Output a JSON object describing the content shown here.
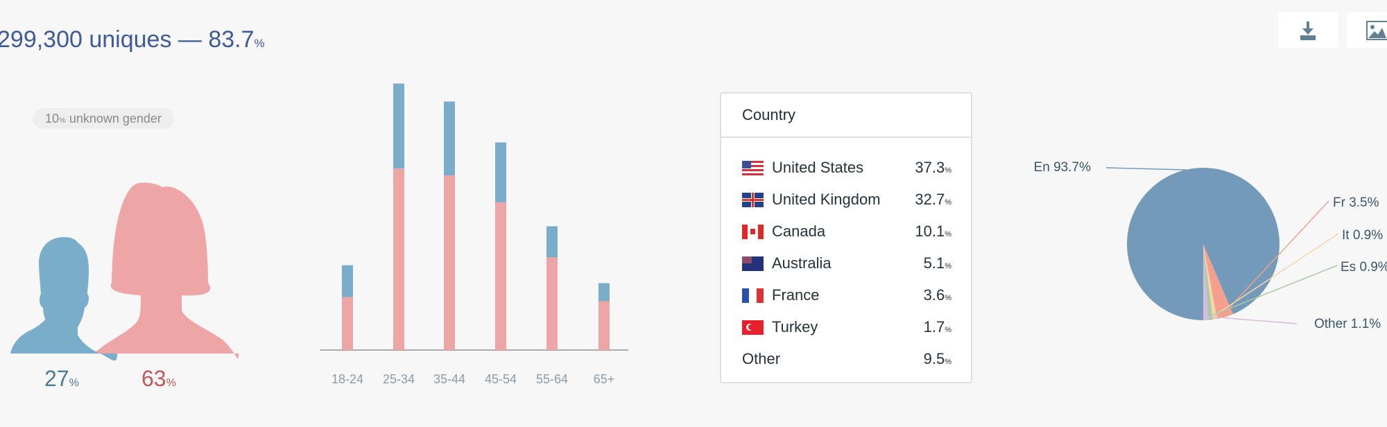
{
  "header": {
    "uniques": "299,300 uniques",
    "dash": "—",
    "share": "83.7",
    "share_unit": "%"
  },
  "toolbar": {
    "download_icon": "download-icon",
    "image_icon": "image-icon"
  },
  "gender": {
    "unknown_value": "10",
    "unknown_unit": "%",
    "unknown_label": "unknown gender",
    "male": {
      "value": "27",
      "unit": "%",
      "color": "#79adc9"
    },
    "female": {
      "value": "63",
      "unit": "%",
      "color": "#eea5a6"
    }
  },
  "chart_data": [
    {
      "type": "bar",
      "stacked": true,
      "categories": [
        "18-24",
        "25-34",
        "35-44",
        "45-54",
        "55-64",
        "65+"
      ],
      "series": [
        {
          "color": "#eea5a6",
          "values": [
            5.3,
            18.2,
            17.5,
            14.8,
            9.3,
            4.9
          ]
        },
        {
          "color": "#79adc9",
          "values": [
            3.2,
            8.5,
            7.4,
            6.0,
            3.1,
            1.8
          ]
        }
      ],
      "grid": false
    },
    {
      "type": "pie",
      "slices": [
        {
          "label": "En 93.7%",
          "value": 93.7,
          "color": "#739bb9"
        },
        {
          "label": "Fr 3.5%",
          "value": 3.5,
          "color": "#f4a08f"
        },
        {
          "label": "It 0.9%",
          "value": 0.9,
          "color": "#f6d6a6"
        },
        {
          "label": "Es 0.9%",
          "value": 0.9,
          "color": "#a9c8a6"
        },
        {
          "label": "Other 1.1%",
          "value": 1.1,
          "color": "#d3bcdc"
        }
      ]
    }
  ],
  "country": {
    "title": "Country",
    "rows": [
      {
        "name": "United States",
        "value": "37.3",
        "unit": "%",
        "flag": "us"
      },
      {
        "name": "United Kingdom",
        "value": "32.7",
        "unit": "%",
        "flag": "gb"
      },
      {
        "name": "Canada",
        "value": "10.1",
        "unit": "%",
        "flag": "ca"
      },
      {
        "name": "Australia",
        "value": "5.1",
        "unit": "%",
        "flag": "au"
      },
      {
        "name": "France",
        "value": "3.6",
        "unit": "%",
        "flag": "fr"
      },
      {
        "name": "Turkey",
        "value": "1.7",
        "unit": "%",
        "flag": "tr"
      },
      {
        "name": "Other",
        "value": "9.5",
        "unit": "%",
        "flag": ""
      }
    ]
  }
}
